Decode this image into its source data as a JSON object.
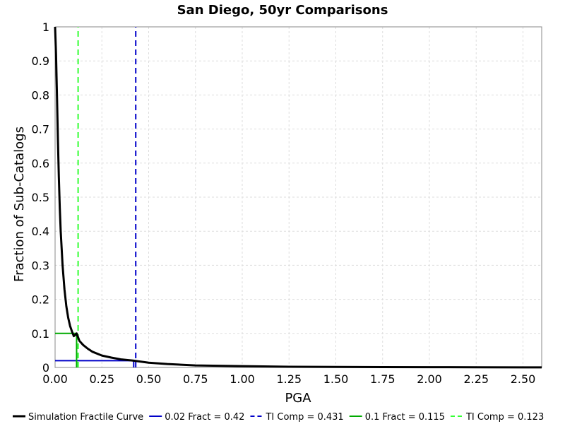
{
  "chart_data": {
    "type": "line",
    "title": "San Diego, 50yr Comparisons",
    "xlabel": "PGA",
    "ylabel": "Fraction of Sub-Catalogs",
    "xlim": [
      0,
      2.6
    ],
    "ylim": [
      0,
      1
    ],
    "x_ticks": [
      "0.00",
      "0.25",
      "0.50",
      "0.75",
      "1.00",
      "1.25",
      "1.50",
      "1.75",
      "2.00",
      "2.25",
      "2.50"
    ],
    "y_ticks": [
      "0",
      "0.1",
      "0.2",
      "0.3",
      "0.4",
      "0.5",
      "0.6",
      "0.7",
      "0.8",
      "0.9",
      "1"
    ],
    "grid": true,
    "legend_position": "bottom",
    "series": [
      {
        "name": "Simulation Fractile Curve",
        "color": "#000000",
        "style": "solid",
        "x": [
          0.0,
          0.005,
          0.01,
          0.015,
          0.02,
          0.025,
          0.03,
          0.04,
          0.05,
          0.06,
          0.07,
          0.08,
          0.09,
          0.1,
          0.115,
          0.13,
          0.15,
          0.175,
          0.2,
          0.25,
          0.3,
          0.35,
          0.42,
          0.5,
          0.6,
          0.75,
          1.0,
          1.25,
          1.5,
          1.75,
          2.0,
          2.25,
          2.5,
          2.6
        ],
        "y": [
          1.0,
          0.92,
          0.8,
          0.67,
          0.56,
          0.47,
          0.4,
          0.3,
          0.23,
          0.18,
          0.146,
          0.122,
          0.106,
          0.092,
          0.1,
          0.078,
          0.066,
          0.055,
          0.046,
          0.035,
          0.029,
          0.024,
          0.02,
          0.014,
          0.01,
          0.006,
          0.004,
          0.002,
          0.0015,
          0.001,
          0.0008,
          0.0005,
          0.0003,
          0.0002
        ]
      },
      {
        "name": "0.02 Fract = 0.42",
        "color": "#0000c8",
        "style": "solid",
        "x": [
          0.0,
          0.42,
          0.42
        ],
        "y": [
          0.02,
          0.02,
          0.0
        ]
      },
      {
        "name": "TI Comp = 0.431",
        "color": "#0000c8",
        "style": "dashed",
        "x": [
          0.431,
          0.431
        ],
        "y": [
          0.0,
          1.0
        ]
      },
      {
        "name": "0.1 Fract = 0.115",
        "color": "#00aa00",
        "style": "solid",
        "x": [
          0.0,
          0.115,
          0.115
        ],
        "y": [
          0.1,
          0.1,
          0.0
        ]
      },
      {
        "name": "TI Comp = 0.123",
        "color": "#33ff33",
        "style": "dashed",
        "x": [
          0.123,
          0.123
        ],
        "y": [
          0.0,
          1.0
        ]
      }
    ]
  }
}
